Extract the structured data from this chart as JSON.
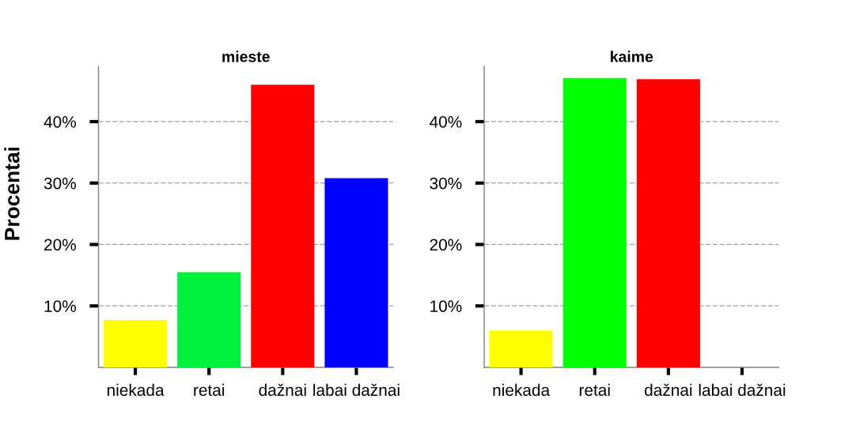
{
  "chart_data": [
    {
      "type": "bar",
      "title": "mieste",
      "ylabel": "Procentai",
      "categories": [
        "niekada",
        "retai",
        "dažnai",
        "labai dažnai"
      ],
      "values": [
        7.7,
        15.5,
        46.0,
        30.8
      ],
      "colors": [
        "#ffff00",
        "#00f23f",
        "#ff0000",
        "#0000ff"
      ],
      "ylim": [
        0,
        49
      ],
      "yticks": [
        {
          "value": 10,
          "label": "10%"
        },
        {
          "value": 20,
          "label": "20%"
        },
        {
          "value": 30,
          "label": "30%"
        },
        {
          "value": 40,
          "label": "40%"
        }
      ],
      "grid": "y"
    },
    {
      "type": "bar",
      "title": "kaime",
      "categories": [
        "niekada",
        "retai",
        "dažnai",
        "labai dažnai"
      ],
      "values": [
        6.0,
        47.1,
        46.9,
        0
      ],
      "colors": [
        "#ffff00",
        "#00ff00",
        "#ff0000",
        "#0000ff"
      ],
      "ylim": [
        0,
        49
      ],
      "yticks": [
        {
          "value": 10,
          "label": "10%"
        },
        {
          "value": 20,
          "label": "20%"
        },
        {
          "value": 30,
          "label": "30%"
        },
        {
          "value": 40,
          "label": "40%"
        }
      ],
      "grid": "y"
    }
  ]
}
